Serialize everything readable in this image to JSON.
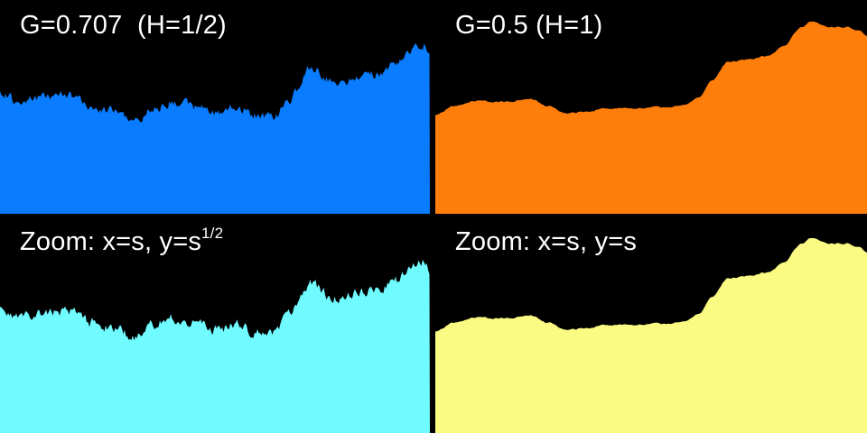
{
  "panels": {
    "top_left": {
      "label": "G=0.707  (H=1/2)",
      "color": "#0a7cff"
    },
    "top_right": {
      "label": "G=0.5 (H=1)",
      "color": "#ff7d0a"
    },
    "bottom_left": {
      "label_main": "Zoom: x=s, y=s",
      "label_sup": "1/2",
      "color": "#6ffbff"
    },
    "bottom_right": {
      "label": "Zoom: x=s, y=s",
      "color": "#fbfb84"
    }
  }
}
